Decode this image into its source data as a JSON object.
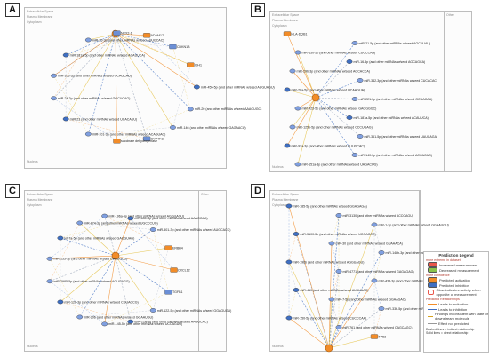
{
  "panels": [
    {
      "label": "A",
      "id": "A"
    },
    {
      "label": "B",
      "id": "B"
    },
    {
      "label": "C",
      "id": "C"
    },
    {
      "label": "D",
      "id": "D"
    }
  ],
  "region_labels": {
    "extracellular": "Extracellular Space",
    "plasma": "Plasma Membrane",
    "cytoplasm": "Cytoplasm",
    "nucleus": "Nucleus",
    "other": "Other"
  },
  "legend": {
    "title": "Prediction Legend",
    "section_more_extreme": "more extreme in dataset",
    "increased": "Increased measurement",
    "decreased": "Decreased measurement",
    "section_more_confidence": "more confidence",
    "pred_activation": "Predicted activation",
    "pred_inhibition": "Predicted inhibition",
    "glow": "Glow indicates activity when opposite of measurement",
    "section_relationships": "Predicted Relationships",
    "leads_activation": "Leads to activation",
    "leads_inhibition": "Leads to inhibition",
    "findings_inconsistent": "Findings inconsistent with state of downstream molecule",
    "effect_not_predicted": "Effect not predicted",
    "footer1": "Dashed lines = indirect relationship",
    "footer2": "Solid lines = direct relationship",
    "colors": {
      "increased": "#e9574b",
      "decreased": "#8bc34a",
      "activation": "#f28c28",
      "inhibition": "#3f6fc2",
      "effect_not_predicted": "#e5c34a",
      "inconsistent": "#d6a21e"
    }
  },
  "nodes": {
    "A": [
      {
        "text": "miR-455-5p (and other miRNAs w/seed AUGUAGU)"
      },
      {
        "text": "miR-20 (and other miRNAs w/seed AAAGUGC)"
      },
      {
        "text": "miR-146 (and other miRNAs w/seed GAGAACU)"
      },
      {
        "text": "CYP4F11"
      },
      {
        "text": "succinate dehydrogenase"
      },
      {
        "text": "miR-101-3p (and other miRNAs w/seed ACAGUAC)"
      },
      {
        "text": "miR-23 (and other miRNAs w/seed UCACAUU)"
      },
      {
        "text": "miR-24-3p (and other miRNAs w/seed GGCUCAG)"
      },
      {
        "text": "miR-103-3p (and other miRNAs w/seed GCAGCAU)"
      },
      {
        "text": "miR-181a-5p (and other miRNAs w/seed ACAUUCA)"
      },
      {
        "text": "miR-25-3p (and other miRNAs w/seed AUUGCAC)"
      },
      {
        "text": "NKX2-1"
      },
      {
        "text": "ADAM17"
      },
      {
        "text": "CDKN1B"
      },
      {
        "text": "IDH1"
      }
    ],
    "B": [
      {
        "text": "HLA-DQB1"
      },
      {
        "text": "miR-21-5p (and other miRNAs w/seed AGCUUAU)"
      },
      {
        "text": "miR-150-5p (and other miRNAs w/seed CUCCCAA)"
      },
      {
        "text": "miR-16-5p (and other miRNAs w/seed AGCAGCA)"
      },
      {
        "text": "miR-29b-3p (and other miRNAs w/seed AGCACCA)"
      },
      {
        "text": "miR-342-3p (and other miRNAs w/seed CUCACAC)"
      },
      {
        "text": "miR-26a-5p (and other miRNAs w/seed UCAAGUA)"
      },
      {
        "text": "miR-221-3p (and other miRNAs w/seed GCUACAU)"
      },
      {
        "text": "miR-423-5p (and other miRNAs w/seed GAGGGGC)"
      },
      {
        "text": "miR-181a-5p (and other miRNAs w/seed ACAUUCA)"
      },
      {
        "text": "miR-125b-5p (and other miRNAs w/seed CCCUGAG)"
      },
      {
        "text": "miR-361-5p (and other miRNAs w/seed UAUCAGA)"
      },
      {
        "text": "miR-92a-3p (and other miRNAs w/seed AUUGCAC)"
      },
      {
        "text": "miR-140-3p (and other miRNAs w/seed ACCACAG)"
      },
      {
        "text": "miR-151a-3p (and other miRNAs w/seed UAGACUG)"
      }
    ],
    "C": [
      {
        "text": "CXCL12"
      },
      {
        "text": "TGFB1"
      },
      {
        "text": "miR-122-5p (and other miRNAs w/seed GGAGUGU)"
      },
      {
        "text": "miR-224-5p (and other miRNAs w/seed AAGUCAC)"
      },
      {
        "text": "miR-145-5p (and other miRNAs w/seed UCCAGUU)"
      },
      {
        "text": "miR-206 (and other miRNAs w/seed GGAAUGU)"
      },
      {
        "text": "miR-126-3p (and other miRNAs w/seed CGUACCG)"
      },
      {
        "text": "miR-2985-5p (and other miRNAs w/seed AGUGAGG)"
      },
      {
        "text": "miR-155-5p (and other miRNAs w/seed UAAUGCU)"
      },
      {
        "text": "let-7a-5p (and other miRNAs w/seed GAGGUAG)"
      },
      {
        "text": "miR-874-3p (and other miRNAs w/seed UGCCCUG)"
      },
      {
        "text": "miR-196a-5p (and other miRNAs w/seed AGGUAGU)"
      },
      {
        "text": "miR-651-3p (and other miRNAs w/seed AAAGGAA)"
      },
      {
        "text": "miR-501-3p (and other miRNAs w/seed AUGCACC)"
      },
      {
        "text": "ERBB4"
      }
    ],
    "D": [
      {
        "text": "miR-185-5p (and other miRNAs w/seed GGAGAGA)"
      },
      {
        "text": "miR-3130 (and other miRNAs w/seed ACCCAGU)"
      },
      {
        "text": "miR-1-3p (and other miRNAs w/seed GGAAUGU)"
      },
      {
        "text": "miR-5100-5p (and other miRNAs w/seed UCGAGCC)"
      },
      {
        "text": "miR-30 (and other miRNAs w/seed GUAAACA)"
      },
      {
        "text": "miR-148b-3p (and other miRNAs w/seed CAGUGCA)"
      },
      {
        "text": "miR-196b (and other miRNAs w/seed AGGUAGU)"
      },
      {
        "text": "miR-4771 (and other miRNAs w/seed GAGAGAG)"
      },
      {
        "text": "miR-433-3p (and other miRNAs w/seed UCAUGAU)"
      },
      {
        "text": "miR-410 (and other miRNAs w/seed AUAUAAC)"
      },
      {
        "text": "miR-7-5p (and other miRNAs w/seed GGAAGAC)"
      },
      {
        "text": "miR-33b-5p (and other miRNAs w/seed UGCAUUG)"
      },
      {
        "text": "miR-150-5p (and other miRNAs w/seed CUCCCAA)"
      },
      {
        "text": "miR-761 (and other miRNAs w/seed CAGCAGC)"
      },
      {
        "text": "TP53"
      }
    ]
  }
}
